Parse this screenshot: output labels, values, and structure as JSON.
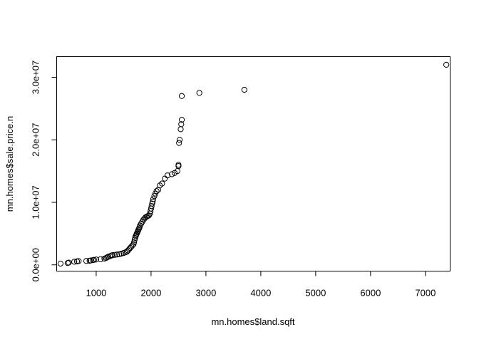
{
  "chart_data": {
    "type": "scatter",
    "title": "",
    "xlabel": "mn.homes$land.sqft",
    "ylabel": "mn.homes$sale.price.n",
    "xlim": [
      280,
      7450
    ],
    "ylim": [
      -1000000,
      33300000
    ],
    "x_ticks": [
      1000,
      2000,
      3000,
      4000,
      5000,
      6000,
      7000
    ],
    "x_tick_labels": [
      "1000",
      "2000",
      "3000",
      "4000",
      "5000",
      "6000",
      "7000"
    ],
    "y_ticks": [
      0,
      10000000,
      20000000,
      30000000
    ],
    "y_tick_labels": [
      "0.0e+00",
      "1.0e+07",
      "2.0e+07",
      "3.0e+07"
    ],
    "grid": false,
    "legend": "none",
    "marker": "open-circle",
    "colors": {
      "points": "#000000",
      "axes": "#000000",
      "background": "#ffffff"
    },
    "points": {
      "x": [
        350,
        480,
        500,
        600,
        650,
        680,
        820,
        880,
        900,
        940,
        960,
        1000,
        1080,
        1150,
        1180,
        1200,
        1220,
        1250,
        1280,
        1300,
        1340,
        1380,
        1420,
        1460,
        1500,
        1530,
        1560,
        1580,
        1600,
        1620,
        1640,
        1660,
        1680,
        1690,
        1700,
        1710,
        1720,
        1730,
        1740,
        1750,
        1760,
        1770,
        1780,
        1790,
        1800,
        1820,
        1840,
        1860,
        1880,
        1900,
        1920,
        1940,
        1960,
        1980,
        1990,
        2000,
        2010,
        2020,
        2030,
        2040,
        2060,
        2080,
        2100,
        2130,
        2160,
        2200,
        2250,
        2300,
        2380,
        2430,
        2480,
        2500,
        2500,
        2510,
        2520,
        2540,
        2550,
        2560,
        2880,
        3700,
        7380
      ],
      "y": [
        200000,
        300000,
        350000,
        500000,
        550000,
        600000,
        620000,
        650000,
        700000,
        750000,
        800000,
        850000,
        900000,
        1000000,
        1100000,
        1200000,
        1300000,
        1400000,
        1500000,
        1550000,
        1600000,
        1650000,
        1700000,
        1800000,
        1900000,
        2000000,
        2100000,
        2300000,
        2500000,
        2700000,
        2900000,
        3100000,
        3300000,
        3600000,
        4000000,
        4300000,
        4600000,
        4800000,
        5000000,
        5200000,
        5400000,
        5600000,
        5800000,
        6000000,
        6300000,
        6600000,
        6900000,
        7200000,
        7400000,
        7600000,
        7700000,
        7800000,
        7900000,
        8200000,
        8600000,
        9000000,
        9400000,
        9800000,
        10100000,
        10500000,
        11000000,
        11400000,
        11800000,
        12000000,
        12700000,
        13000000,
        13800000,
        14300000,
        14500000,
        14700000,
        15000000,
        15800000,
        16000000,
        19500000,
        20000000,
        21700000,
        22500000,
        23200000,
        27500000,
        28000000,
        32000000
      ],
      "x2": [
        2560
      ],
      "y2": [
        27000000
      ]
    }
  }
}
